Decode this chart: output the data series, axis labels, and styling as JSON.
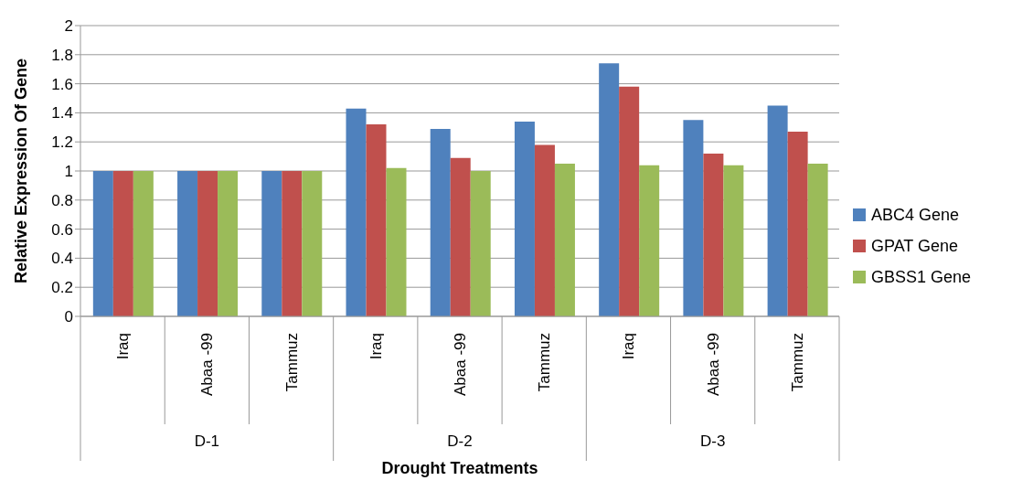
{
  "chart_data": {
    "type": "bar",
    "xlabel": "Drought Treatments",
    "ylabel": "Relative Expression Of Gene",
    "categories": [
      "Iraq",
      "Abaa -99",
      "Tammuz",
      "Iraq",
      "Abaa -99",
      "Tammuz",
      "Iraq",
      "Abaa -99",
      "Tammuz"
    ],
    "annotations": [
      "D-1",
      "D-2",
      "D-3"
    ],
    "series": [
      {
        "name": "ABC4 Gene",
        "color": "#4f81bd",
        "values": [
          1,
          1,
          1,
          1.43,
          1.29,
          1.34,
          1.74,
          1.35,
          1.45
        ]
      },
      {
        "name": "GPAT Gene",
        "color": "#c0504d",
        "values": [
          1,
          1,
          1,
          1.32,
          1.09,
          1.18,
          1.58,
          1.12,
          1.27
        ]
      },
      {
        "name": "GBSS1 Gene",
        "color": "#9bbb59",
        "values": [
          1,
          1,
          1,
          1.02,
          1.0,
          1.05,
          1.04,
          1.04,
          1.05
        ]
      }
    ],
    "ylim": [
      0,
      2
    ],
    "yticks": [
      0,
      0.2,
      0.4,
      0.6,
      0.8,
      1,
      1.2,
      1.4,
      1.6,
      1.8,
      2
    ],
    "grid": "y",
    "legend": "right"
  }
}
